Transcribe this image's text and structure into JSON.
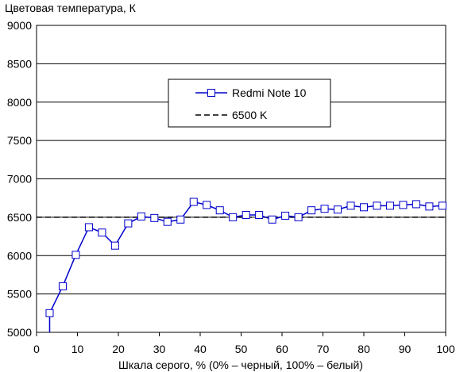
{
  "chart_data": {
    "type": "line",
    "title": "",
    "ylabel": "Цветовая температура, К",
    "xlabel": "Шкала серого, % (0% – черный, 100% – белый)",
    "xlim": [
      0,
      100
    ],
    "ylim": [
      5000,
      9000
    ],
    "x_ticks": [
      0,
      10,
      20,
      30,
      40,
      50,
      60,
      70,
      80,
      90,
      100
    ],
    "y_ticks": [
      5000,
      5500,
      6000,
      6500,
      7000,
      7500,
      8000,
      8500,
      9000
    ],
    "grid": "horizontal",
    "legend_position": "top-center",
    "series": [
      {
        "name": "Redmi Note 10",
        "style": "solid-line-square-markers",
        "color": "#0000cc",
        "x": [
          3.2,
          6.4,
          9.6,
          12.8,
          16.0,
          19.2,
          22.4,
          25.6,
          28.8,
          32.0,
          35.2,
          38.4,
          41.6,
          44.8,
          48.0,
          51.2,
          54.4,
          57.6,
          60.8,
          64.0,
          67.2,
          70.4,
          73.6,
          76.8,
          80.0,
          83.2,
          86.4,
          89.6,
          92.8,
          96.0,
          99.2
        ],
        "values": [
          5250,
          5600,
          6010,
          6370,
          6300,
          6130,
          6420,
          6510,
          6490,
          6440,
          6470,
          6700,
          6660,
          6590,
          6500,
          6530,
          6530,
          6470,
          6520,
          6500,
          6590,
          6610,
          6600,
          6650,
          6630,
          6650,
          6650,
          6660,
          6670,
          6640,
          6650
        ]
      },
      {
        "name": "6500 K",
        "style": "dashed-line",
        "color": "#000000",
        "x": [
          0,
          100
        ],
        "values": [
          6500,
          6500
        ]
      }
    ],
    "partial_segment": {
      "x": [
        3.2,
        3.2
      ],
      "values": [
        4950,
        5250
      ]
    }
  }
}
